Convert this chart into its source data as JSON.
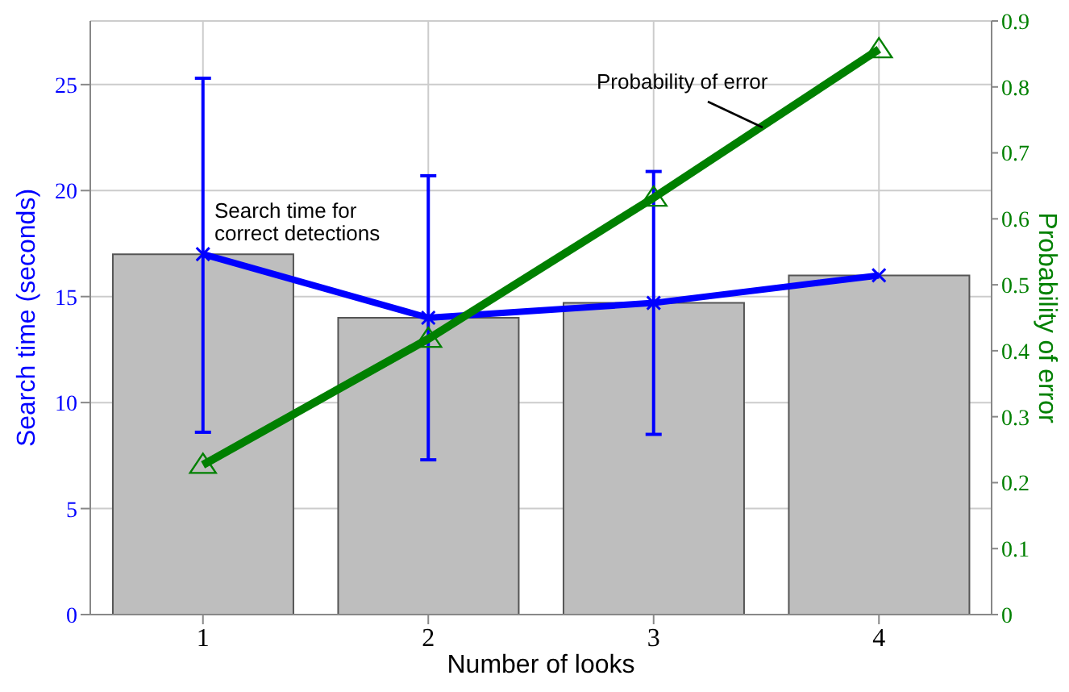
{
  "chart_data": {
    "type": "bar",
    "xlabel": "Number of looks",
    "ylabel": "Search time (seconds)",
    "y2label": "Probability of error",
    "categories": [
      "1",
      "2",
      "3",
      "4"
    ],
    "series": [
      {
        "color": "#bebebe",
        "values": [
          17,
          14,
          14.7,
          16
        ]
      },
      {
        "type": "line",
        "color": "#0000ff",
        "marker": "cross",
        "values": [
          17,
          14,
          14.7,
          16
        ],
        "errors": [
          [
            8.6,
            25.3
          ],
          [
            7.3,
            20.7
          ],
          [
            8.5,
            20.9
          ],
          null
        ]
      },
      {
        "type": "line",
        "color": "#008000",
        "marker": "triangle",
        "axis": "y2",
        "values": [
          0.227,
          0.418,
          0.632,
          0.857
        ]
      }
    ],
    "ylim": [
      0,
      28
    ],
    "yticks": [
      0,
      5,
      10,
      15,
      20,
      25
    ],
    "y2lim": [
      0,
      0.9
    ],
    "y2ticks": [
      0,
      0.1,
      0.2,
      0.3,
      0.4,
      0.5,
      0.6,
      0.7,
      0.8,
      0.9
    ],
    "grid": true,
    "annotations": [
      "Search time for correct detections",
      "Probability of error"
    ]
  }
}
